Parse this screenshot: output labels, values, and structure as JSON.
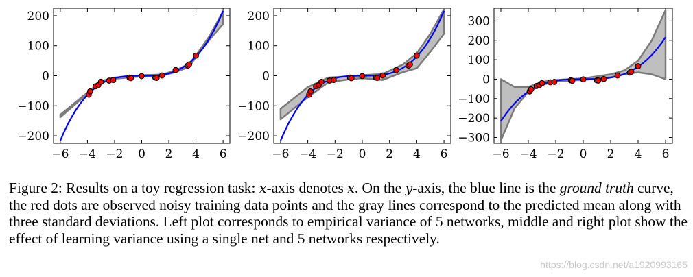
{
  "chart_data": [
    {
      "type": "line",
      "panel": "left",
      "x_ticks": [
        -6,
        -4,
        -2,
        0,
        2,
        4,
        6
      ],
      "y_ticks": [
        200,
        100,
        0,
        -100,
        -200
      ],
      "xlim": [
        -6.5,
        6.5
      ],
      "ylim": [
        -225,
        225
      ],
      "ground_truth_y_at_x6": 216,
      "band_lower": {
        "x": [
          -6,
          -4,
          -3,
          -2,
          0,
          1.5,
          2.5,
          3.5,
          4,
          5,
          6
        ],
        "y": [
          -138,
          -60,
          -22,
          -10,
          -2,
          0,
          12,
          30,
          62,
          120,
          172
        ]
      },
      "band_upper": {
        "x": [
          -6,
          -4,
          -3,
          -2,
          0,
          1.5,
          2.5,
          3.5,
          4,
          5,
          6
        ],
        "y": [
          -130,
          -56,
          -18,
          -6,
          2,
          4,
          18,
          40,
          68,
          132,
          215
        ]
      },
      "data_points": {
        "x": [
          -3.9,
          -3.8,
          -3.4,
          -3.2,
          -3.0,
          -2.4,
          -2.1,
          -0.9,
          -0.8,
          0.0,
          1.0,
          1.1,
          1.5,
          2.5,
          3.4,
          3.5,
          4.0
        ],
        "y": [
          -63,
          -52,
          -35,
          -31,
          -20,
          -16,
          -14,
          -6,
          -8,
          -1,
          -6,
          -7,
          1,
          19,
          34,
          38,
          67
        ]
      }
    },
    {
      "type": "line",
      "panel": "middle",
      "x_ticks": [
        -6,
        -4,
        -2,
        0,
        2,
        4,
        6
      ],
      "y_ticks": [
        200,
        100,
        0,
        -100,
        -200
      ],
      "xlim": [
        -6.5,
        6.5
      ],
      "ylim": [
        -225,
        225
      ],
      "ground_truth_y_at_x6": 216,
      "band_lower": {
        "x": [
          -6,
          -4,
          -2.5,
          -1,
          0,
          1.5,
          3,
          4,
          5,
          6
        ],
        "y": [
          -145,
          -72,
          -22,
          -12,
          -8,
          -14,
          12,
          25,
          80,
          140
        ]
      },
      "band_upper": {
        "x": [
          -6,
          -4,
          -2.5,
          -1,
          0,
          1.5,
          3,
          4,
          5,
          6
        ],
        "y": [
          -110,
          -38,
          -6,
          -2,
          2,
          6,
          38,
          75,
          140,
          222
        ]
      },
      "data_points": {
        "x": [
          -3.9,
          -3.8,
          -3.4,
          -3.2,
          -3.0,
          -2.4,
          -2.1,
          -0.9,
          -0.8,
          0.0,
          1.0,
          1.1,
          1.5,
          2.5,
          3.4,
          3.5,
          4.0
        ],
        "y": [
          -63,
          -52,
          -35,
          -31,
          -20,
          -16,
          -14,
          -6,
          -8,
          -1,
          -6,
          -7,
          1,
          19,
          34,
          38,
          67
        ]
      }
    },
    {
      "type": "line",
      "panel": "right",
      "x_ticks": [
        -6,
        -4,
        -2,
        0,
        2,
        4,
        6
      ],
      "y_ticks": [
        300,
        200,
        100,
        0,
        -100,
        -200,
        -300
      ],
      "xlim": [
        -6.5,
        6.5
      ],
      "ylim": [
        -330,
        365
      ],
      "ground_truth_y_at_x6": 216,
      "band_lower": {
        "x": [
          -6,
          -5,
          -4,
          -3,
          -2,
          0,
          2,
          3,
          4,
          5,
          6
        ],
        "y": [
          -315,
          -150,
          -65,
          -30,
          -10,
          -4,
          10,
          25,
          35,
          25,
          0
        ]
      },
      "band_upper": {
        "x": [
          -6,
          -5,
          -4,
          -3,
          -2,
          0,
          2,
          3,
          4,
          5,
          6
        ],
        "y": [
          0,
          -40,
          -40,
          -14,
          -4,
          4,
          25,
          45,
          95,
          200,
          355
        ]
      },
      "data_points": {
        "x": [
          -3.9,
          -3.8,
          -3.4,
          -3.2,
          -3.0,
          -2.4,
          -2.1,
          -0.9,
          -0.8,
          0.0,
          1.0,
          1.1,
          1.5,
          2.5,
          3.4,
          3.5,
          4.0
        ],
        "y": [
          -63,
          -52,
          -35,
          -31,
          -20,
          -16,
          -14,
          -6,
          -8,
          -1,
          -6,
          -7,
          1,
          19,
          34,
          38,
          67
        ]
      }
    }
  ],
  "caption": {
    "p1": "Figure 2: Results on a toy regression task: ",
    "math_x": "x",
    "p2": "-axis denotes ",
    "math_x2": "x",
    "p3": ". On the ",
    "math_y": "y",
    "p4": "-axis, the blue line is the ",
    "em_ground_truth": "ground truth",
    "p5": " curve, the red dots are observed noisy training data points and the gray lines correspond to the predicted mean along with three standard deviations. Left plot corresponds to empirical variance of 5 networks, middle and right plot show the effect of learning variance using a single net and 5 networks respectively."
  },
  "watermark": "https://blog.csdn.net/a1920993165",
  "colors": {
    "ground_truth": "#0000ff",
    "band_fill": "#bfbfbf",
    "band_line": "#7a7a7a",
    "point_fill": "#ff0000"
  }
}
